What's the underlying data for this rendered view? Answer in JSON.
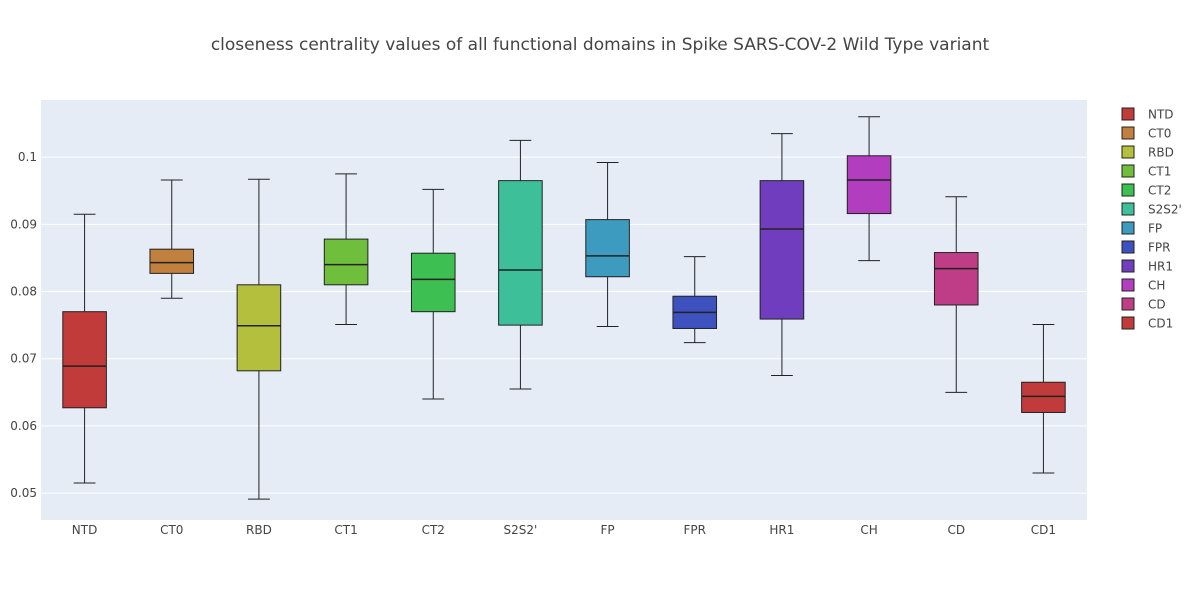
{
  "chart_data": {
    "type": "box",
    "title": "closeness centrality values of all functional domains in Spike SARS-COV-2 Wild Type variant",
    "xlabel": "",
    "ylabel": "",
    "ylim": [
      0.046,
      0.1085
    ],
    "yticks": [
      0.05,
      0.06,
      0.07,
      0.08,
      0.09,
      0.1
    ],
    "ytick_labels": [
      "0.05",
      "0.06",
      "0.07",
      "0.08",
      "0.09",
      "0.1"
    ],
    "grid": true,
    "legend": "right",
    "plot_background": "#e5ecf6",
    "categories": [
      "NTD",
      "CT0",
      "RBD",
      "CT1",
      "CT2",
      "S2S2'",
      "FP",
      "FPR",
      "HR1",
      "CH",
      "CD",
      "CD1"
    ],
    "series": [
      {
        "name": "NTD",
        "color": "#c23b3b",
        "min": 0.0515,
        "q1": 0.0627,
        "median": 0.0689,
        "q3": 0.077,
        "max": 0.0915
      },
      {
        "name": "CT0",
        "color": "#c1803d",
        "min": 0.079,
        "q1": 0.0827,
        "median": 0.0843,
        "q3": 0.0863,
        "max": 0.0966
      },
      {
        "name": "RBD",
        "color": "#b3bf3d",
        "min": 0.0491,
        "q1": 0.0682,
        "median": 0.0749,
        "q3": 0.081,
        "max": 0.0967
      },
      {
        "name": "CT1",
        "color": "#6fbe3c",
        "min": 0.0751,
        "q1": 0.081,
        "median": 0.084,
        "q3": 0.0878,
        "max": 0.0975
      },
      {
        "name": "CT2",
        "color": "#3dbf52",
        "min": 0.064,
        "q1": 0.077,
        "median": 0.0818,
        "q3": 0.0857,
        "max": 0.0952
      },
      {
        "name": "S2S2'",
        "color": "#3dbf9a",
        "min": 0.0655,
        "q1": 0.075,
        "median": 0.0832,
        "q3": 0.0965,
        "max": 0.1025
      },
      {
        "name": "FP",
        "color": "#3d9bbf",
        "min": 0.0748,
        "q1": 0.0822,
        "median": 0.0853,
        "q3": 0.0907,
        "max": 0.0992
      },
      {
        "name": "FPR",
        "color": "#3d52bf",
        "min": 0.0724,
        "q1": 0.0745,
        "median": 0.0769,
        "q3": 0.0793,
        "max": 0.0852
      },
      {
        "name": "HR1",
        "color": "#703dbf",
        "min": 0.0675,
        "q1": 0.0759,
        "median": 0.0893,
        "q3": 0.0965,
        "max": 0.1035
      },
      {
        "name": "CH",
        "color": "#b23dbf",
        "min": 0.0846,
        "q1": 0.0916,
        "median": 0.0966,
        "q3": 0.1002,
        "max": 0.106
      },
      {
        "name": "CD",
        "color": "#bf3d86",
        "min": 0.065,
        "q1": 0.078,
        "median": 0.0834,
        "q3": 0.0858,
        "max": 0.0941
      },
      {
        "name": "CD1",
        "color": "#c23b3b",
        "min": 0.053,
        "q1": 0.062,
        "median": 0.0644,
        "q3": 0.0665,
        "max": 0.0751
      }
    ]
  }
}
